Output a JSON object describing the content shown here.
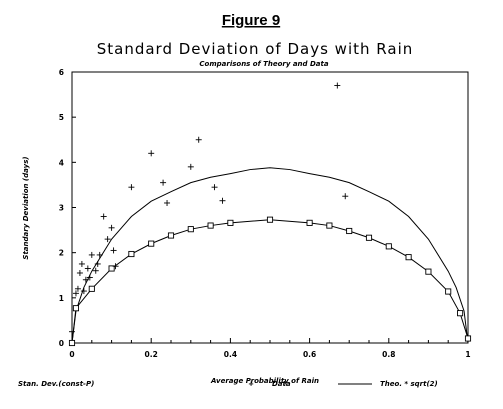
{
  "figure_label": "Figure 9",
  "chart_data": {
    "type": "scatter",
    "title": "Standard Deviation of Days with Rain",
    "subtitle": "Comparisons of Theory and Data",
    "xlabel": "Average Probability of Rain",
    "ylabel": "Standary Deviation (days)",
    "xlim": [
      0,
      1
    ],
    "ylim": [
      0,
      6
    ],
    "x_ticks": [
      "0",
      "0.2",
      "0.4",
      "0.6",
      "0.8",
      "1"
    ],
    "y_ticks": [
      "0",
      "1",
      "2",
      "3",
      "4",
      "5",
      "6"
    ],
    "grid": false,
    "legend_position": "bottom",
    "series": [
      {
        "name": "Stan. Dev.(const-P)",
        "style": "line-square",
        "x": [
          0.0,
          0.01,
          0.05,
          0.1,
          0.15,
          0.2,
          0.25,
          0.3,
          0.35,
          0.4,
          0.5,
          0.6,
          0.65,
          0.7,
          0.75,
          0.8,
          0.85,
          0.9,
          0.95,
          0.98,
          1.0
        ],
        "y": [
          0.0,
          0.77,
          1.2,
          1.65,
          1.97,
          2.2,
          2.38,
          2.52,
          2.6,
          2.66,
          2.73,
          2.66,
          2.6,
          2.48,
          2.33,
          2.14,
          1.9,
          1.58,
          1.14,
          0.66,
          0.1
        ]
      },
      {
        "name": "Data",
        "style": "plus",
        "x": [
          0.0,
          0.01,
          0.015,
          0.02,
          0.025,
          0.03,
          0.035,
          0.04,
          0.045,
          0.05,
          0.06,
          0.065,
          0.07,
          0.08,
          0.09,
          0.1,
          0.105,
          0.11,
          0.15,
          0.2,
          0.23,
          0.24,
          0.3,
          0.32,
          0.36,
          0.38,
          0.67,
          0.69
        ],
        "y": [
          0.25,
          1.1,
          1.2,
          1.55,
          1.75,
          1.15,
          1.4,
          1.65,
          1.45,
          1.95,
          1.6,
          1.75,
          1.95,
          2.8,
          2.3,
          2.55,
          2.05,
          1.7,
          3.45,
          4.2,
          3.55,
          3.1,
          3.9,
          4.5,
          3.45,
          3.15,
          5.7,
          3.25
        ]
      },
      {
        "name": "Theo. * sqrt(2)",
        "style": "line",
        "x": [
          0.0,
          0.01,
          0.03,
          0.05,
          0.1,
          0.15,
          0.2,
          0.25,
          0.3,
          0.35,
          0.4,
          0.45,
          0.5,
          0.55,
          0.6,
          0.65,
          0.7,
          0.75,
          0.8,
          0.85,
          0.9,
          0.95,
          0.97,
          0.99,
          1.0
        ],
        "y": [
          0.0,
          0.71,
          1.23,
          1.59,
          2.3,
          2.8,
          3.14,
          3.35,
          3.55,
          3.67,
          3.75,
          3.84,
          3.88,
          3.84,
          3.75,
          3.67,
          3.55,
          3.35,
          3.14,
          2.8,
          2.3,
          1.59,
          1.23,
          0.71,
          0.0
        ]
      }
    ]
  }
}
